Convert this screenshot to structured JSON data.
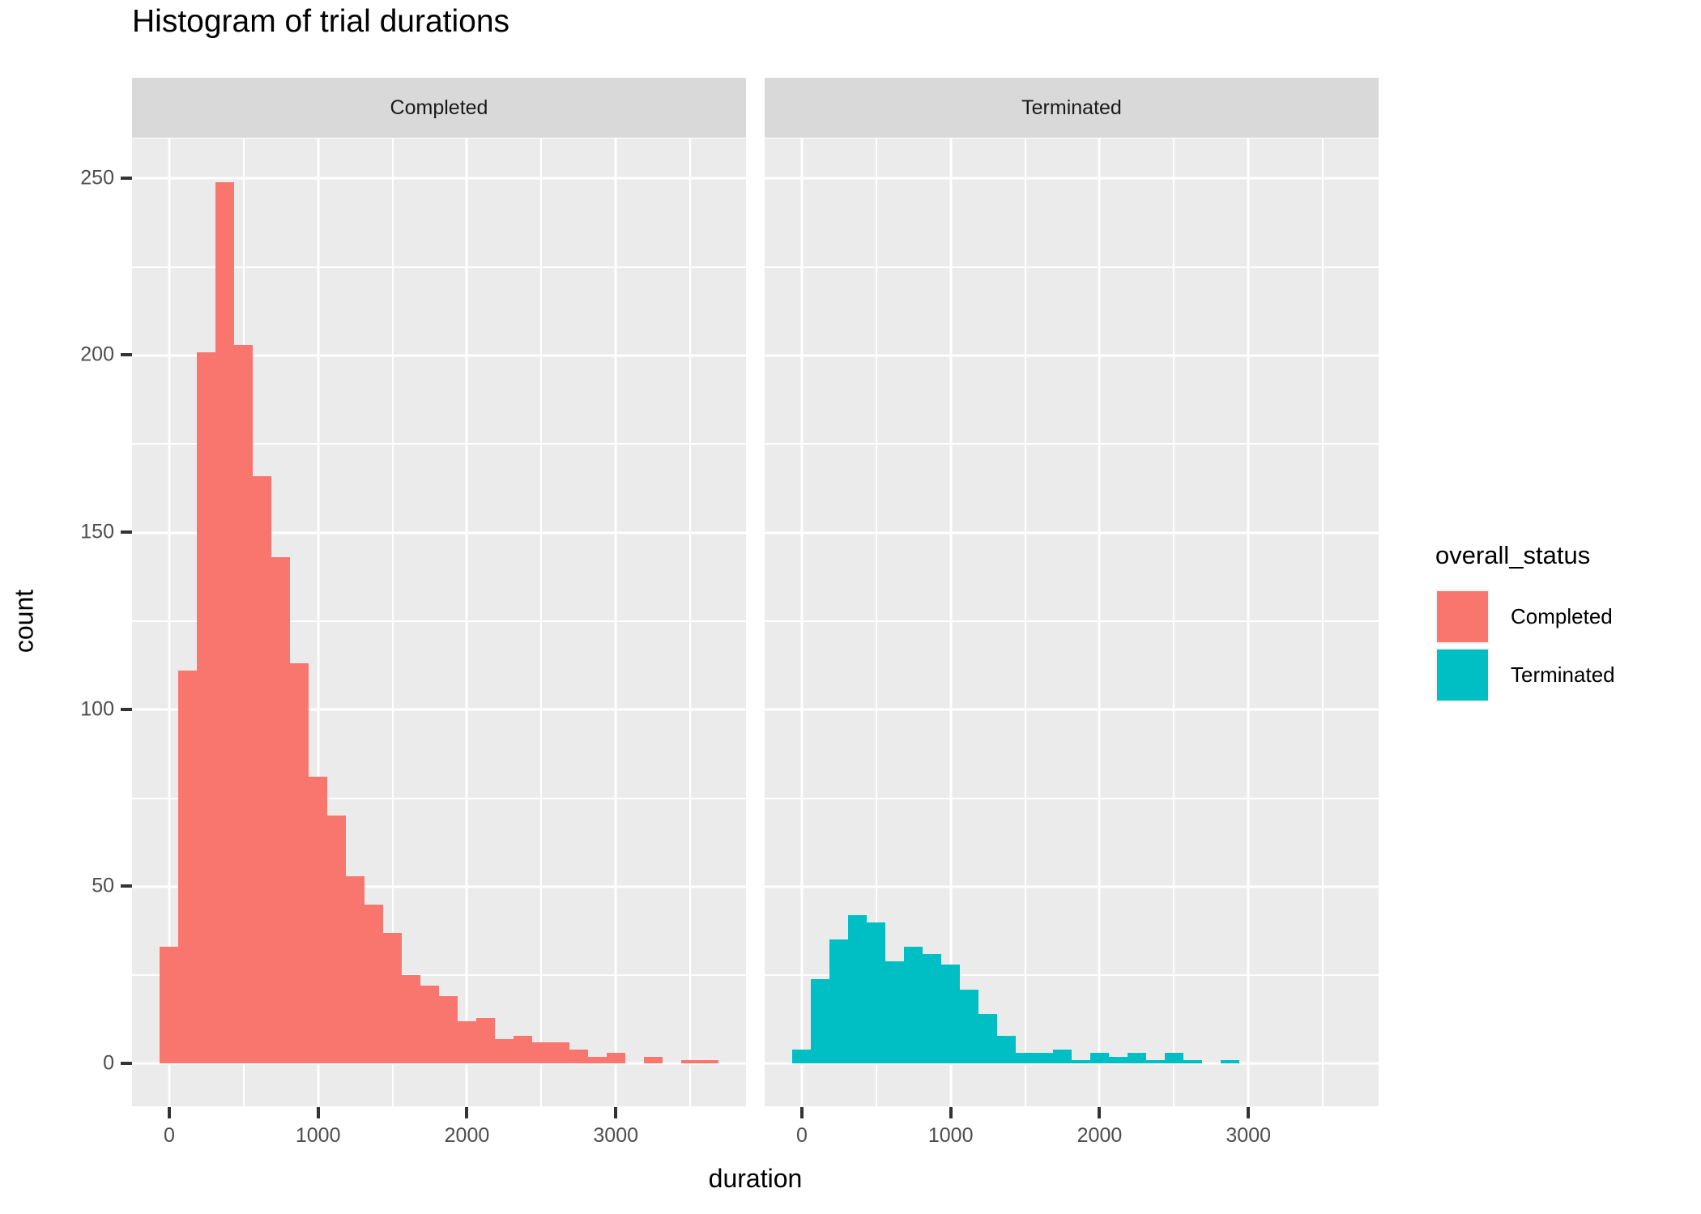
{
  "title": "Histogram of trial durations",
  "axes": {
    "x": {
      "title": "duration",
      "breaks": [
        0,
        1000,
        2000,
        3000
      ],
      "labels": [
        "0",
        "1000",
        "2000",
        "3000"
      ],
      "minor_breaks": [
        500,
        1500,
        2500,
        3500
      ],
      "range": [
        -250,
        3875
      ]
    },
    "y": {
      "title": "count",
      "breaks": [
        0,
        50,
        100,
        150,
        200,
        250
      ],
      "labels": [
        "0",
        "50",
        "100",
        "150",
        "200",
        "250"
      ],
      "minor_breaks": [
        25,
        75,
        125,
        175,
        225
      ],
      "range": [
        -11.9,
        261.4
      ]
    }
  },
  "legend": {
    "title": "overall_status",
    "position": "right",
    "entries": [
      {
        "label": "Completed",
        "color": "#F8766D"
      },
      {
        "label": "Terminated",
        "color": "#00BFC4"
      }
    ]
  },
  "style": {
    "panel_bg": "#EBEBEB",
    "strip_bg": "#D9D9D9",
    "grid_color": "#FFFFFF",
    "tick_color": "#333333",
    "axis_text_color": "#4D4D4D",
    "strip_text_color": "#1A1A1A",
    "text_color": "#000000"
  },
  "chart_data": {
    "type": "bar",
    "subtype": "faceted-histogram",
    "title": "Histogram of trial durations",
    "xlabel": "duration",
    "ylabel": "count",
    "grid": true,
    "legend_position": "right",
    "binwidth": 125,
    "xlim": [
      -250,
      3875
    ],
    "ylim": [
      -11.9,
      261.4
    ],
    "bin_centers": [
      0,
      125,
      250,
      375,
      500,
      625,
      750,
      875,
      1000,
      1125,
      1250,
      1375,
      1500,
      1625,
      1750,
      1875,
      2000,
      2125,
      2250,
      2375,
      2500,
      2625,
      2750,
      2875,
      3000,
      3125,
      3250,
      3375,
      3500,
      3625
    ],
    "facets": [
      {
        "label": "Completed",
        "color": "#F8766D",
        "counts": [
          33,
          111,
          201,
          249,
          203,
          166,
          143,
          113,
          81,
          70,
          53,
          45,
          37,
          25,
          22,
          19,
          12,
          13,
          7,
          8,
          6,
          6,
          4,
          2,
          3,
          0,
          2,
          0,
          1,
          1
        ]
      },
      {
        "label": "Terminated",
        "color": "#00BFC4",
        "counts": [
          4,
          24,
          35,
          42,
          40,
          29,
          33,
          31,
          28,
          21,
          14,
          8,
          3,
          3,
          4,
          1,
          3,
          2,
          3,
          1,
          3,
          1,
          0,
          1,
          0,
          0,
          0,
          0,
          0,
          0
        ]
      }
    ]
  }
}
